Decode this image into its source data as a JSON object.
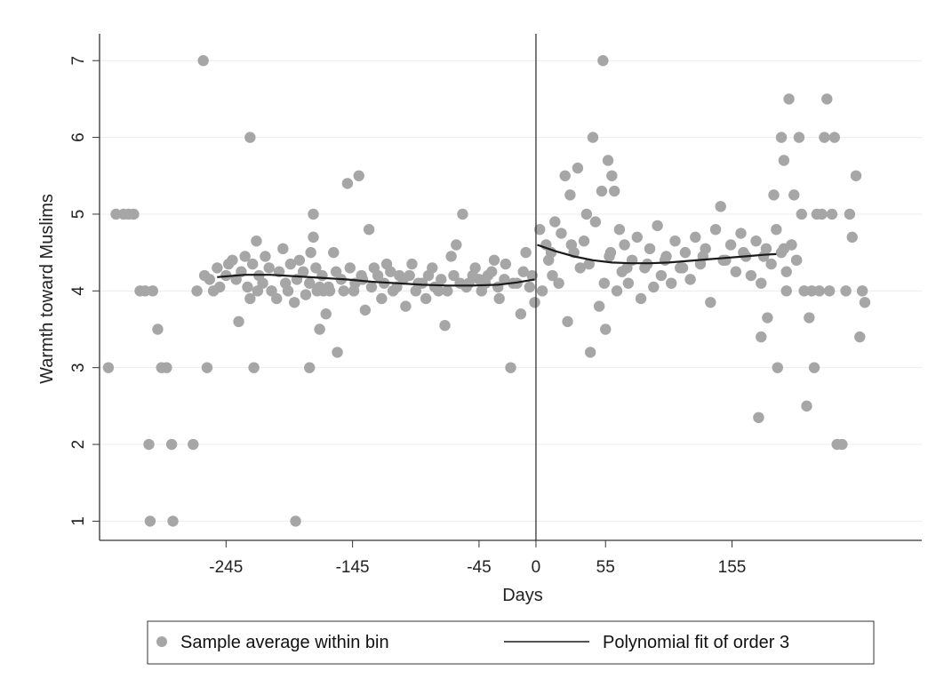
{
  "chart_data": {
    "type": "scatter",
    "xlabel": "Days",
    "ylabel": "Warmth toward Muslims",
    "x_ticks": [
      -245,
      -145,
      -45,
      0,
      55,
      155
    ],
    "y_ticks": [
      1,
      2,
      3,
      4,
      5,
      6,
      7
    ],
    "xlim": [
      -345,
      305
    ],
    "ylim": [
      0.75,
      7.35
    ],
    "grid": "horizontal",
    "cutoff": 0,
    "legend_position": "bottom",
    "colors": {
      "points": "#a6a6a6",
      "fit": "#1a1a1a",
      "grid": "#ececec",
      "axis": "#333333"
    },
    "series": [
      {
        "name": "Sample average within bin",
        "kind": "scatter",
        "points": [
          [
            -338,
            3
          ],
          [
            -332,
            5
          ],
          [
            -326,
            5
          ],
          [
            -322,
            5
          ],
          [
            -318,
            5
          ],
          [
            -313,
            4
          ],
          [
            -309,
            4
          ],
          [
            -306,
            2
          ],
          [
            -305,
            1
          ],
          [
            -303,
            4
          ],
          [
            -299,
            3.5
          ],
          [
            -296,
            3
          ],
          [
            -292,
            3
          ],
          [
            -288,
            2
          ],
          [
            -287,
            1
          ],
          [
            -271,
            2
          ],
          [
            -268,
            4
          ],
          [
            -263,
            7
          ],
          [
            -260,
            3
          ],
          [
            -255,
            4
          ],
          [
            -226,
            6
          ],
          [
            -223,
            3
          ],
          [
            -220,
            4
          ],
          [
            -190,
            1
          ],
          [
            -179,
            3
          ],
          [
            -178,
            4.5
          ],
          [
            -176,
            5
          ],
          [
            -173,
            4
          ],
          [
            -171,
            3.5
          ],
          [
            -168,
            4
          ],
          [
            -163,
            4
          ],
          [
            -258,
            4.15
          ],
          [
            -252,
            4.3
          ],
          [
            -245,
            4.2
          ],
          [
            -240,
            4.4
          ],
          [
            -235,
            3.6
          ],
          [
            -230,
            4.45
          ],
          [
            -226,
            3.9
          ],
          [
            -221,
            4.65
          ],
          [
            -216,
            4.1
          ],
          [
            -211,
            4.3
          ],
          [
            -205,
            3.9
          ],
          [
            -200,
            4.55
          ],
          [
            -196,
            4.0
          ],
          [
            -191,
            3.85
          ],
          [
            -187,
            4.4
          ],
          [
            -182,
            3.95
          ],
          [
            -176,
            4.7
          ],
          [
            -171,
            4.05
          ],
          [
            -166,
            3.7
          ],
          [
            -160,
            4.5
          ],
          [
            -157,
            3.2
          ],
          [
            -152,
            4.0
          ],
          [
            -149,
            5.4
          ],
          [
            -143,
            4.1
          ],
          [
            -140,
            5.5
          ],
          [
            -138,
            4.2
          ],
          [
            -135,
            3.75
          ],
          [
            -132,
            4.8
          ],
          [
            -128,
            4.3
          ],
          [
            -122,
            3.9
          ],
          [
            -118,
            4.35
          ],
          [
            -113,
            4.0
          ],
          [
            -108,
            4.2
          ],
          [
            -103,
            3.8
          ],
          [
            -98,
            4.35
          ],
          [
            -93,
            4.1
          ],
          [
            -87,
            3.9
          ],
          [
            -82,
            4.3
          ],
          [
            -77,
            4.0
          ],
          [
            -72,
            3.55
          ],
          [
            -67,
            4.45
          ],
          [
            -63,
            4.6
          ],
          [
            -58,
            5.0
          ],
          [
            -53,
            4.1
          ],
          [
            -48,
            4.3
          ],
          [
            -43,
            4.0
          ],
          [
            -38,
            4.2
          ],
          [
            -33,
            4.4
          ],
          [
            -29,
            3.9
          ],
          [
            -24,
            4.35
          ],
          [
            -20,
            3.0
          ],
          [
            -15,
            4.1
          ],
          [
            -12,
            3.7
          ],
          [
            -8,
            4.5
          ],
          [
            -3,
            4.2
          ],
          [
            -1,
            3.85
          ],
          [
            -262,
            4.2
          ],
          [
            -250,
            4.05
          ],
          [
            -243,
            4.35
          ],
          [
            -237,
            4.15
          ],
          [
            -233,
            4.25
          ],
          [
            -228,
            4.05
          ],
          [
            -224,
            4.35
          ],
          [
            -219,
            4.2
          ],
          [
            -214,
            4.45
          ],
          [
            -209,
            4.0
          ],
          [
            -203,
            4.25
          ],
          [
            -198,
            4.1
          ],
          [
            -194,
            4.35
          ],
          [
            -189,
            4.15
          ],
          [
            -184,
            4.25
          ],
          [
            -179,
            4.1
          ],
          [
            -174,
            4.3
          ],
          [
            -169,
            4.2
          ],
          [
            -164,
            4.05
          ],
          [
            -158,
            4.25
          ],
          [
            -154,
            4.15
          ],
          [
            -147,
            4.3
          ],
          [
            -144,
            4.0
          ],
          [
            -137,
            4.15
          ],
          [
            -130,
            4.05
          ],
          [
            -125,
            4.2
          ],
          [
            -120,
            4.1
          ],
          [
            -115,
            4.25
          ],
          [
            -110,
            4.05
          ],
          [
            -105,
            4.15
          ],
          [
            -100,
            4.2
          ],
          [
            -95,
            4.0
          ],
          [
            -90,
            4.1
          ],
          [
            -85,
            4.2
          ],
          [
            -80,
            4.05
          ],
          [
            -75,
            4.15
          ],
          [
            -70,
            4.0
          ],
          [
            -65,
            4.2
          ],
          [
            -60,
            4.1
          ],
          [
            -55,
            4.05
          ],
          [
            -50,
            4.2
          ],
          [
            -45,
            4.15
          ],
          [
            -40,
            4.1
          ],
          [
            -35,
            4.25
          ],
          [
            -30,
            4.05
          ],
          [
            -25,
            4.15
          ],
          [
            -18,
            4.1
          ],
          [
            -10,
            4.25
          ],
          [
            -5,
            4.05
          ],
          [
            3,
            4.8
          ],
          [
            5,
            4.0
          ],
          [
            8,
            4.6
          ],
          [
            10,
            4.4
          ],
          [
            13,
            4.2
          ],
          [
            15,
            4.9
          ],
          [
            18,
            4.1
          ],
          [
            20,
            4.75
          ],
          [
            23,
            5.5
          ],
          [
            25,
            3.6
          ],
          [
            27,
            5.25
          ],
          [
            30,
            4.5
          ],
          [
            33,
            5.6
          ],
          [
            35,
            4.3
          ],
          [
            38,
            4.65
          ],
          [
            40,
            5.0
          ],
          [
            43,
            3.2
          ],
          [
            45,
            6.0
          ],
          [
            47,
            4.9
          ],
          [
            50,
            3.8
          ],
          [
            52,
            5.3
          ],
          [
            53,
            7.0
          ],
          [
            54,
            4.1
          ],
          [
            55,
            3.5
          ],
          [
            57,
            5.7
          ],
          [
            59,
            4.5
          ],
          [
            60,
            5.5
          ],
          [
            62,
            5.3
          ],
          [
            64,
            4.0
          ],
          [
            66,
            4.8
          ],
          [
            68,
            4.25
          ],
          [
            70,
            4.6
          ],
          [
            73,
            4.1
          ],
          [
            76,
            4.4
          ],
          [
            80,
            4.7
          ],
          [
            83,
            3.9
          ],
          [
            86,
            4.3
          ],
          [
            90,
            4.55
          ],
          [
            93,
            4.05
          ],
          [
            96,
            4.85
          ],
          [
            99,
            4.2
          ],
          [
            103,
            4.45
          ],
          [
            107,
            4.1
          ],
          [
            110,
            4.65
          ],
          [
            114,
            4.3
          ],
          [
            118,
            4.5
          ],
          [
            122,
            4.15
          ],
          [
            126,
            4.7
          ],
          [
            130,
            4.35
          ],
          [
            134,
            4.55
          ],
          [
            138,
            3.85
          ],
          [
            142,
            4.8
          ],
          [
            146,
            5.1
          ],
          [
            150,
            4.4
          ],
          [
            154,
            4.6
          ],
          [
            158,
            4.25
          ],
          [
            162,
            4.75
          ],
          [
            166,
            4.45
          ],
          [
            170,
            4.2
          ],
          [
            174,
            4.65
          ],
          [
            178,
            4.1
          ],
          [
            182,
            4.55
          ],
          [
            186,
            4.35
          ],
          [
            190,
            4.8
          ],
          [
            194,
            4.5
          ],
          [
            198,
            4.25
          ],
          [
            202,
            4.6
          ],
          [
            206,
            4.4
          ],
          [
            12,
            4.5
          ],
          [
            28,
            4.6
          ],
          [
            42,
            4.35
          ],
          [
            58,
            4.45
          ],
          [
            72,
            4.3
          ],
          [
            88,
            4.35
          ],
          [
            102,
            4.4
          ],
          [
            116,
            4.3
          ],
          [
            132,
            4.45
          ],
          [
            148,
            4.4
          ],
          [
            164,
            4.5
          ],
          [
            180,
            4.45
          ],
          [
            196,
            4.55
          ],
          [
            188,
            5.25
          ],
          [
            191,
            3.0
          ],
          [
            194,
            6.0
          ],
          [
            196,
            5.7
          ],
          [
            198,
            4.0
          ],
          [
            200,
            6.5
          ],
          [
            202,
            4.6
          ],
          [
            204,
            5.25
          ],
          [
            206,
            4.4
          ],
          [
            208,
            6.0
          ],
          [
            210,
            5.0
          ],
          [
            212,
            4.0
          ],
          [
            214,
            2.5
          ],
          [
            216,
            3.65
          ],
          [
            218,
            4.0
          ],
          [
            220,
            3.0
          ],
          [
            222,
            5.0
          ],
          [
            224,
            4.0
          ],
          [
            226,
            5.0
          ],
          [
            228,
            6.0
          ],
          [
            230,
            6.5
          ],
          [
            232,
            4.0
          ],
          [
            234,
            5.0
          ],
          [
            236,
            6.0
          ],
          [
            238,
            2.0
          ],
          [
            242,
            2.0
          ],
          [
            245,
            4.0
          ],
          [
            248,
            5.0
          ],
          [
            250,
            4.7
          ],
          [
            253,
            5.5
          ],
          [
            256,
            3.4
          ],
          [
            258,
            4.0
          ],
          [
            260,
            3.85
          ],
          [
            176,
            2.35
          ],
          [
            178,
            3.4
          ],
          [
            183,
            3.65
          ]
        ]
      },
      {
        "name": "Polynomial fit of order 3",
        "kind": "line",
        "segments": [
          [
            [
              -252,
              4.18
            ],
            [
              -230,
              4.21
            ],
            [
              -210,
              4.21
            ],
            [
              -190,
              4.19
            ],
            [
              -170,
              4.17
            ],
            [
              -150,
              4.15
            ],
            [
              -130,
              4.12
            ],
            [
              -110,
              4.1
            ],
            [
              -90,
              4.08
            ],
            [
              -70,
              4.07
            ],
            [
              -50,
              4.07
            ],
            [
              -30,
              4.08
            ],
            [
              -15,
              4.11
            ],
            [
              -1,
              4.15
            ]
          ],
          [
            [
              1,
              4.6
            ],
            [
              15,
              4.52
            ],
            [
              30,
              4.45
            ],
            [
              45,
              4.4
            ],
            [
              60,
              4.37
            ],
            [
              75,
              4.36
            ],
            [
              90,
              4.36
            ],
            [
              105,
              4.37
            ],
            [
              120,
              4.39
            ],
            [
              135,
              4.41
            ],
            [
              150,
              4.43
            ],
            [
              165,
              4.45
            ],
            [
              180,
              4.47
            ],
            [
              190,
              4.48
            ]
          ]
        ]
      }
    ]
  },
  "legend": {
    "scatter_label": "Sample average within bin",
    "line_label": "Polynomial fit of order 3"
  }
}
